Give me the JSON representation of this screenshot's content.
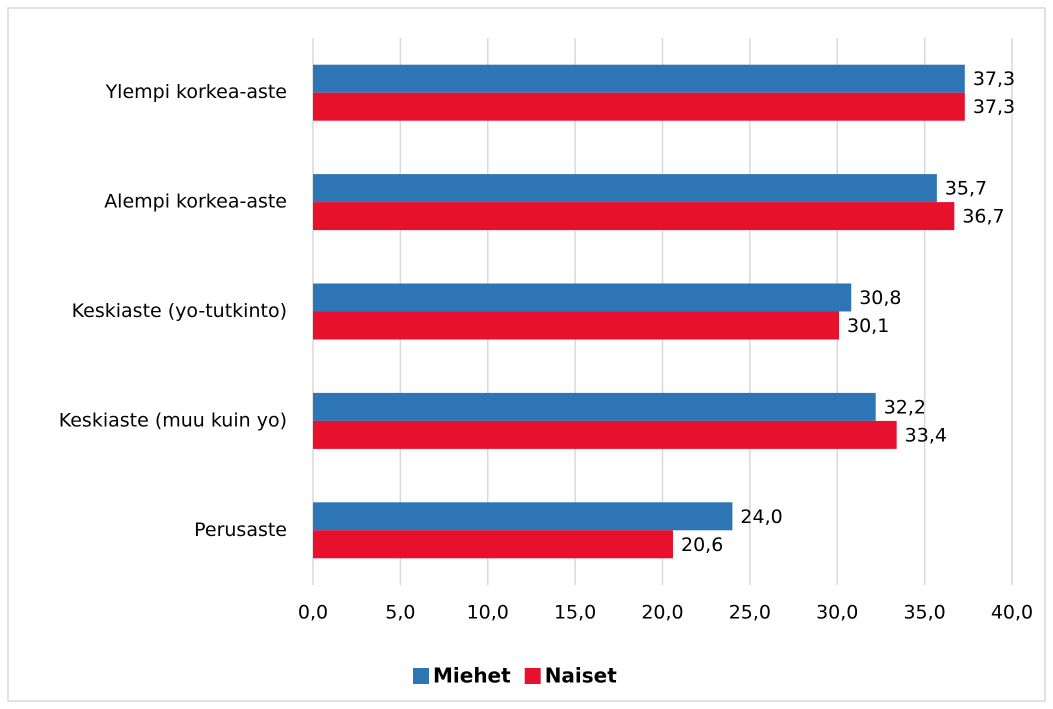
{
  "chart_data": {
    "type": "hbar",
    "categories": [
      "Ylempi korkea-aste",
      "Alempi korkea-aste",
      "Keskiaste (yo-tutkinto)",
      "Keskiaste (muu kuin yo)",
      "Perusaste"
    ],
    "series": [
      {
        "name": "Miehet",
        "color": "#2e75b6",
        "values": [
          37.3,
          35.7,
          30.8,
          32.2,
          24.0
        ],
        "value_labels": [
          "37,3",
          "35,7",
          "30,8",
          "32,2",
          "24,0"
        ]
      },
      {
        "name": "Naiset",
        "color": "#e8112d",
        "values": [
          37.3,
          36.7,
          30.1,
          33.4,
          20.6
        ],
        "value_labels": [
          "37,3",
          "36,7",
          "30,1",
          "33,4",
          "20,6"
        ]
      }
    ],
    "xlim": [
      0,
      40
    ],
    "xticks": [
      {
        "value": 0,
        "label": "0,0"
      },
      {
        "value": 5,
        "label": "5,0"
      },
      {
        "value": 10,
        "label": "10,0"
      },
      {
        "value": 15,
        "label": "15,0"
      },
      {
        "value": 20,
        "label": "20,0"
      },
      {
        "value": 25,
        "label": "25,0"
      },
      {
        "value": 30,
        "label": "30,0"
      },
      {
        "value": 35,
        "label": "35,0"
      },
      {
        "value": 40,
        "label": "40,0"
      }
    ],
    "grid": true,
    "legend": "bottom"
  }
}
